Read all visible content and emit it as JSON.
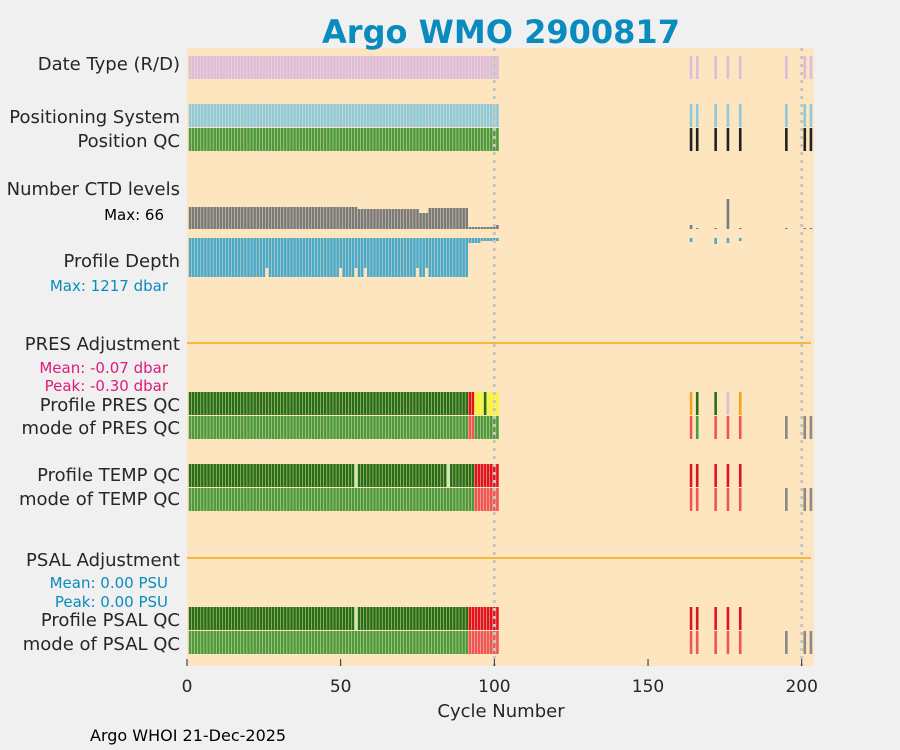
{
  "chart_data": {
    "type": "bar",
    "title": "Argo WMO 2900817",
    "xlabel": "Cycle Number",
    "xlim": [
      0,
      204
    ],
    "xticks": [
      0,
      50,
      100,
      150,
      200
    ],
    "vlines": [
      100,
      200
    ],
    "cycle_groups": {
      "early": [
        1,
        2,
        3,
        4,
        5,
        6,
        7,
        8,
        9,
        10,
        11,
        12,
        13,
        14,
        15,
        16,
        17,
        18,
        19,
        20,
        21,
        22,
        23,
        24,
        25,
        26,
        27,
        28,
        29,
        30,
        31,
        32,
        33,
        34,
        35,
        36,
        37,
        38,
        39,
        40,
        41,
        42,
        43,
        44,
        45,
        46,
        47,
        48,
        49,
        50,
        51,
        52,
        53,
        54,
        55,
        56,
        57,
        58,
        59,
        60,
        61,
        62,
        63,
        64,
        65,
        66,
        67,
        68,
        69,
        70,
        71,
        72,
        73,
        74,
        75,
        76,
        77,
        78,
        79,
        80,
        81,
        82,
        83,
        84,
        85,
        86,
        87,
        88,
        89,
        90,
        91,
        92,
        93,
        94,
        95,
        96,
        97,
        98,
        99,
        100,
        101
      ],
      "late": [
        164,
        166,
        172,
        176,
        180
      ],
      "tail": [
        195,
        201,
        203
      ]
    },
    "rows": {
      "date_type": "Date Type (R/D)",
      "positioning_system": "Positioning System",
      "position_qc": "Position QC",
      "ctd_levels": "Number CTD levels",
      "ctd_max": "Max: 66",
      "profile_depth": "Profile Depth",
      "depth_max": "Max: 1217 dbar",
      "pres_adjustment": "PRES Adjustment",
      "pres_mean": "Mean: -0.07 dbar",
      "pres_peak": "Peak: -0.30 dbar",
      "profile_pres_qc": "Profile PRES QC",
      "mode_pres_qc": "mode of PRES QC",
      "profile_temp_qc": "Profile TEMP QC",
      "mode_temp_qc": "mode of TEMP QC",
      "psal_adjustment": "PSAL Adjustment",
      "psal_mean": "Mean: 0.00 PSU",
      "psal_peak": "Peak: 0.00 PSU",
      "profile_psal_qc": "Profile PSAL QC",
      "mode_psal_qc": "mode of PSAL QC"
    },
    "ctd_max_value": 66,
    "depth_max_value": 1217,
    "pres_adjustment_mean": -0.07,
    "pres_adjustment_peak": -0.3,
    "psal_adjustment_mean": 0.0,
    "psal_adjustment_peak": 0.0,
    "footer": "Argo WHOI 21-Dec-2025"
  },
  "colors": {
    "background": "#f0f0f0",
    "plot_bg": "#fde6bf",
    "title": "#0a8bbd",
    "date_type": "#dcbcdc",
    "positioning": "#8ec9dc",
    "position_qc": "#4d9a3c",
    "black": "#222222",
    "ctd": "#7a7a7a",
    "depth": "#4ca9c9",
    "adjust_line": "#f8b640",
    "qc_good": "#276e15",
    "qc_mode_good": "#4d9a3c",
    "qc_light": "#cfe6b8",
    "qc_bad": "#e0141e",
    "qc_mode_bad": "#ee5555",
    "qc_yellow": "#f5f53a",
    "qc_orange": "#f8a11f",
    "qc_grey": "#8a8a8a",
    "pink": "#e0197d",
    "blue_text": "#0a8bbd",
    "vline": "#c4c4c4"
  }
}
